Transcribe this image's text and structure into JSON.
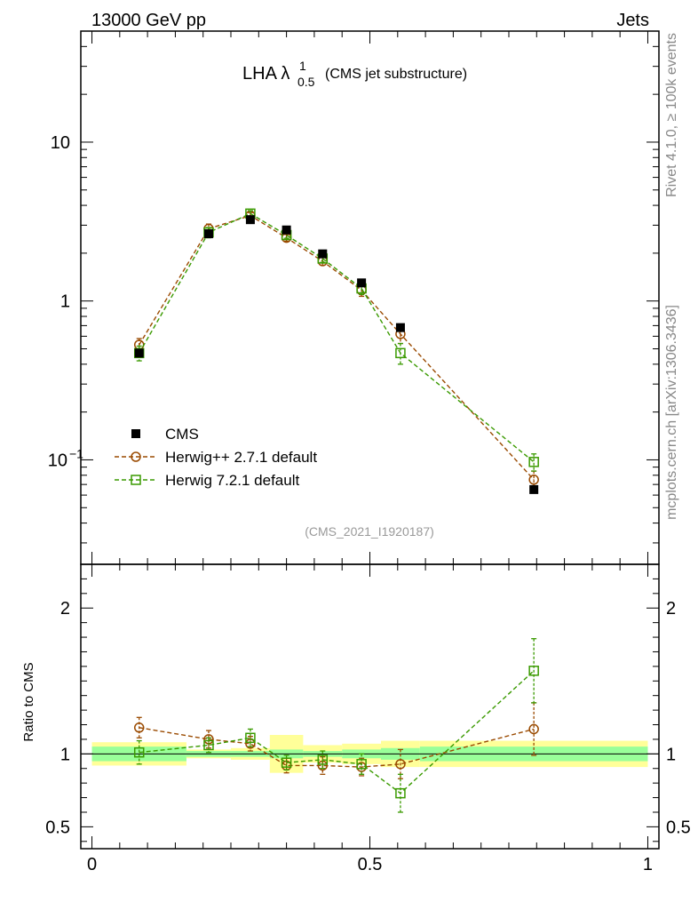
{
  "header": {
    "left": "13000 GeV pp",
    "right": "Jets"
  },
  "side_text": {
    "rivet": "Rivet 4.1.0, ≥ 100k events",
    "mcplots": "mcplots.cern.ch [arXiv:1306.3436]"
  },
  "watermark": "(CMS_2021_I1920187)",
  "chart_data": {
    "type": "line",
    "title_main": "LHA λ",
    "title_sup": "1",
    "title_sub": "0.5",
    "title_suffix": "(CMS jet substructure)",
    "x_ticks": [
      {
        "value": 0,
        "label": "0"
      },
      {
        "value": 0.5,
        "label": "0.5"
      },
      {
        "value": 1,
        "label": "1"
      }
    ],
    "xlim": [
      -0.02,
      1.02
    ],
    "main": {
      "yscale": "log",
      "ylim": [
        0.022,
        50
      ],
      "y_ticks": [
        {
          "value": 0.1,
          "base": "10",
          "exp": "−1"
        },
        {
          "value": 1,
          "label": "1"
        },
        {
          "value": 10,
          "label": "10"
        }
      ]
    },
    "ratio": {
      "ylabel": "Ratio to CMS",
      "ylim": [
        0.35,
        2.3
      ],
      "y_ticks": [
        {
          "value": 0.5,
          "label": "0.5"
        },
        {
          "value": 1,
          "label": "1"
        },
        {
          "value": 2,
          "label": "2"
        }
      ]
    },
    "bins": [
      {
        "lo": 0.0,
        "hi": 0.17,
        "x": 0.085
      },
      {
        "lo": 0.17,
        "hi": 0.25,
        "x": 0.21
      },
      {
        "lo": 0.25,
        "hi": 0.32,
        "x": 0.285
      },
      {
        "lo": 0.32,
        "hi": 0.38,
        "x": 0.35
      },
      {
        "lo": 0.38,
        "hi": 0.45,
        "x": 0.415
      },
      {
        "lo": 0.45,
        "hi": 0.52,
        "x": 0.485
      },
      {
        "lo": 0.52,
        "hi": 0.59,
        "x": 0.555
      },
      {
        "lo": 0.59,
        "hi": 1.0,
        "x": 0.795
      }
    ],
    "cms": {
      "name": "CMS",
      "values": [
        0.47,
        2.65,
        3.25,
        2.8,
        1.98,
        1.3,
        0.68,
        0.065
      ],
      "band_stat": [
        0.05,
        0.02,
        0.02,
        0.03,
        0.02,
        0.03,
        0.04,
        0.05
      ],
      "band_total": [
        0.08,
        0.03,
        0.04,
        0.13,
        0.06,
        0.07,
        0.09,
        0.09
      ]
    },
    "series": [
      {
        "name": "Herwig++ 2.7.1 default",
        "color": "#9a4a00",
        "marker": "circle",
        "values": [
          0.53,
          2.85,
          3.45,
          2.5,
          1.78,
          1.17,
          0.62,
          0.075
        ],
        "errors": [
          0.05,
          0.2,
          0.15,
          0.12,
          0.1,
          0.1,
          0.08,
          0.01
        ],
        "ratio": [
          1.18,
          1.1,
          1.07,
          0.92,
          0.92,
          0.91,
          0.93,
          1.17
        ],
        "ratio_err": [
          0.07,
          0.06,
          0.05,
          0.05,
          0.06,
          0.06,
          0.1,
          0.18
        ]
      },
      {
        "name": "Herwig 7.2.1 default",
        "color": "#3a9a00",
        "marker": "square",
        "values": [
          0.47,
          2.7,
          3.55,
          2.6,
          1.85,
          1.2,
          0.47,
          0.097
        ],
        "errors": [
          0.05,
          0.2,
          0.15,
          0.12,
          0.1,
          0.1,
          0.07,
          0.012
        ],
        "ratio": [
          1.01,
          1.06,
          1.11,
          0.94,
          0.96,
          0.93,
          0.73,
          1.57
        ],
        "ratio_err": [
          0.08,
          0.05,
          0.06,
          0.05,
          0.06,
          0.07,
          0.13,
          0.22
        ]
      }
    ],
    "legend": {
      "position": "center-left",
      "entries": [
        "CMS",
        "Herwig++ 2.7.1 default",
        "Herwig 7.2.1 default"
      ]
    }
  }
}
